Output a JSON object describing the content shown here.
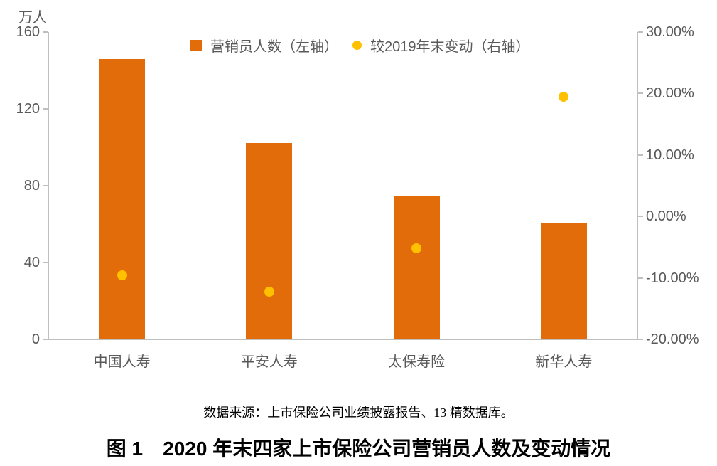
{
  "unit_label": "万人",
  "legend": {
    "items": [
      {
        "label": "营销员人数（左轴）",
        "marker": "square",
        "color": "#E36C0A"
      },
      {
        "label": "较2019年末变动（右轴）",
        "marker": "circle",
        "color": "#FFC000"
      }
    ]
  },
  "chart_data": {
    "type": "bar",
    "subtype": "combo-bar-scatter-dual-axis",
    "title": "图 1　2020 年末四家上市保险公司营销员人数及变动情况",
    "categories": [
      "中国人寿",
      "平安人寿",
      "太保寿险",
      "新华人寿"
    ],
    "series": [
      {
        "name": "营销员人数（左轴）",
        "type": "bar",
        "axis": "left",
        "color": "#E36C0A",
        "values": [
          145.8,
          102.4,
          74.9,
          60.6
        ]
      },
      {
        "name": "较2019年末变动（右轴）",
        "type": "scatter",
        "axis": "right",
        "color": "#FFC000",
        "values": [
          -9.6,
          -12.3,
          -5.2,
          19.5
        ]
      }
    ],
    "left_axis": {
      "label": "万人",
      "min": 0,
      "max": 160,
      "ticks": [
        160,
        120,
        80,
        40,
        0
      ]
    },
    "right_axis": {
      "min": -20,
      "max": 30,
      "ticks": [
        {
          "value": 30,
          "label": "30.00%"
        },
        {
          "value": 20,
          "label": "20.00%"
        },
        {
          "value": 10,
          "label": "10.00%"
        },
        {
          "value": 0,
          "label": "0.00%"
        },
        {
          "value": -10,
          "label": "-10.00%"
        },
        {
          "value": -20,
          "label": "-20.00%"
        }
      ]
    },
    "grid": false,
    "legend_position": "top-center"
  },
  "source_note": "数据来源：上市保险公司业绩披露报告、13 精数据库。",
  "caption": "图 1　2020 年末四家上市保险公司营销员人数及变动情况",
  "colors": {
    "bar": "#E36C0A",
    "dot": "#FFC000",
    "axis_line": "#BFBFBF",
    "axis_text": "#595959",
    "title_text": "#000000"
  }
}
